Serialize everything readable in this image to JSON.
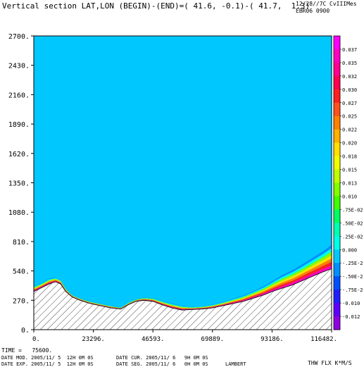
{
  "header": {
    "title": "Vertical section LAT,LON (BEGIN)-(END)=( 41.6, -0.1)-( 41.7,  1.3)",
    "date": "12/28//7C",
    "program": "CvIIIMes",
    "experiment": "EBR06 0900"
  },
  "footer": {
    "time": "TIME =   75600.",
    "date_mod": "DATE MOD. 2005/11/ 5  12H 0M 0S",
    "date_cur": "DATE CUR. 2005/11/ 6   9H 0M 0S",
    "date_exp": "DATE EXP. 2005/11/ 5  12H 0M 0S",
    "date_seg": "DATE SEG. 2005/11/ 6   0H 0M 0S",
    "projection": "LAMBERT",
    "units": "THW FLX K*M/S"
  },
  "colors": {
    "background_field": "#00c8ff",
    "terrain_hatch": "#000000"
  },
  "chart_data": {
    "type": "heatmap",
    "x_ticks": [
      0,
      23296,
      46593,
      69889,
      93186,
      116482
    ],
    "x_tick_labels": [
      "0.",
      "23296.",
      "46593.",
      "69889.",
      "93186.",
      "116482."
    ],
    "y_ticks": [
      0,
      270,
      540,
      810,
      1080,
      1350,
      1620,
      1890,
      2160,
      2430,
      2700
    ],
    "y_tick_labels": [
      "0.",
      "270.",
      "540.",
      "810.",
      "1080.",
      "1350.",
      "1620.",
      "1890.",
      "2160.",
      "2430.",
      "2700."
    ],
    "xlim": [
      0,
      116482
    ],
    "ylim": [
      0,
      2700
    ],
    "colorbar": {
      "labels": [
        "0.037",
        "0.035",
        "0.032",
        "0.030",
        "0.027",
        "0.025",
        "0.022",
        "0.020",
        "0.018",
        "0.015",
        "0.013",
        "0.010",
        ".75E-02",
        ".50E-02",
        ".25E-02",
        "0.000",
        "-.25E-2",
        "-.50E-2",
        "-.75E-2",
        "-0.010",
        "-0.012"
      ],
      "colors": [
        "#ff00ff",
        "#ff00c0",
        "#ff0090",
        "#ff0050",
        "#ff2020",
        "#ff5020",
        "#ff8000",
        "#ffb000",
        "#ffe000",
        "#f0ff00",
        "#c0ff00",
        "#80ff00",
        "#40ff00",
        "#00ff60",
        "#00ffb0",
        "#00ffe8",
        "#00c8ff",
        "#0090ff",
        "#0050ff",
        "#2020ff",
        "#6000ff",
        "#9000e0"
      ]
    },
    "terrain": {
      "x": [
        0,
        3000,
        6000,
        8500,
        10500,
        12500,
        15000,
        18000,
        22000,
        26000,
        30000,
        34000,
        37000,
        40000,
        43000,
        46593,
        50000,
        54000,
        58000,
        62000,
        66000,
        69889,
        74000,
        78000,
        82000,
        86000,
        90000,
        93186,
        97000,
        101000,
        105000,
        109000,
        113000,
        116482
      ],
      "z": [
        350,
        385,
        420,
        440,
        420,
        350,
        300,
        270,
        240,
        220,
        200,
        190,
        230,
        260,
        270,
        260,
        230,
        200,
        180,
        185,
        190,
        200,
        220,
        240,
        260,
        290,
        320,
        350,
        380,
        410,
        450,
        490,
        530,
        560
      ]
    },
    "flux_band": {
      "x": [
        0,
        3000,
        6000,
        8500,
        10500,
        12500,
        15000,
        18000,
        22000,
        26000,
        30000,
        34000,
        37000,
        40000,
        43000,
        46593,
        50000,
        54000,
        58000,
        62000,
        66000,
        69889,
        74000,
        78000,
        82000,
        86000,
        90000,
        93186,
        97000,
        101000,
        105000,
        109000,
        113000,
        116482
      ],
      "top": [
        400,
        430,
        470,
        480,
        460,
        380,
        320,
        290,
        260,
        240,
        220,
        205,
        250,
        280,
        295,
        290,
        265,
        240,
        220,
        210,
        215,
        230,
        255,
        285,
        315,
        355,
        400,
        445,
        500,
        545,
        600,
        660,
        720,
        780
      ]
    }
  }
}
